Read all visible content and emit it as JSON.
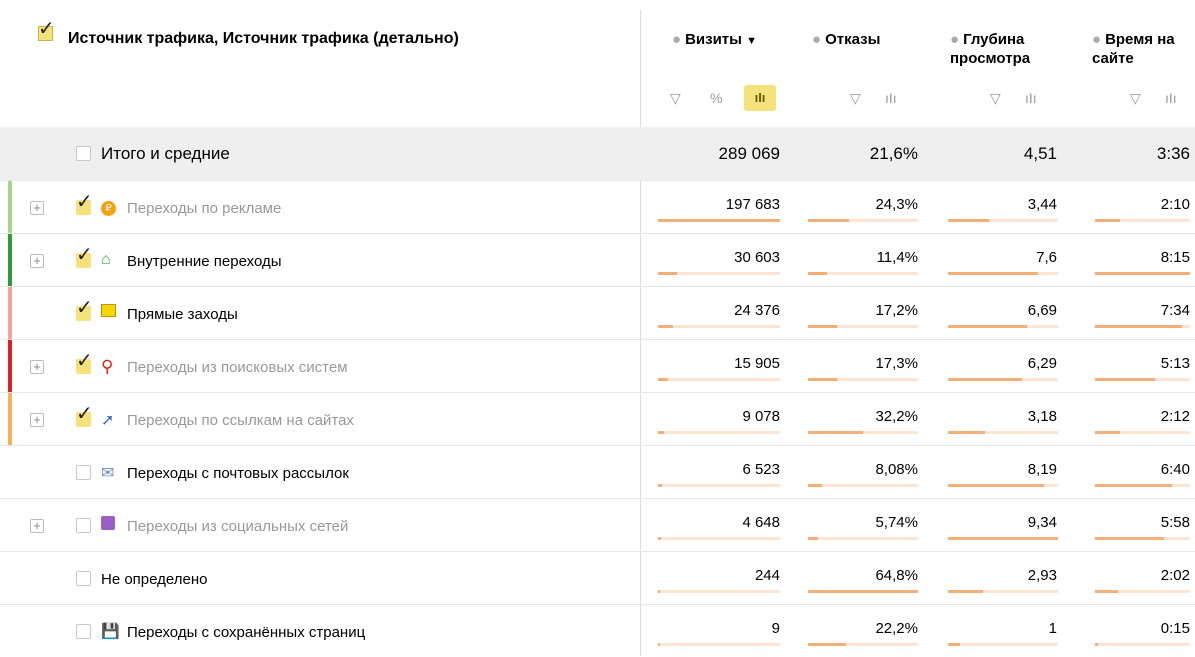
{
  "header": {
    "title": "Источник трафика, Источник трафика (детально)",
    "columns": [
      "Визиты",
      "Отказы",
      "Глубина просмотра",
      "Время на сайте"
    ],
    "sort_indicator": "▼",
    "percent_toggle": "%"
  },
  "total": {
    "label": "Итого и средние",
    "values": [
      "289 069",
      "21,6%",
      "4,51",
      "3:36"
    ]
  },
  "rows": [
    {
      "label": "Переходы по рекламе",
      "values": [
        "197 683",
        "24,3%",
        "3,44",
        "2:10"
      ],
      "expandable": true,
      "checked": true,
      "muted": true,
      "color": "#a8d58a"
    },
    {
      "label": "Внутренние переходы",
      "values": [
        "30 603",
        "11,4%",
        "7,6",
        "8:15"
      ],
      "expandable": true,
      "checked": true,
      "muted": false,
      "color": "#2f9a3c"
    },
    {
      "label": "Прямые заходы",
      "values": [
        "24 376",
        "17,2%",
        "6,69",
        "7:34"
      ],
      "expandable": false,
      "checked": true,
      "muted": false,
      "color": "#f2a3a3"
    },
    {
      "label": "Переходы из поисковых систем",
      "values": [
        "15 905",
        "17,3%",
        "6,29",
        "5:13"
      ],
      "expandable": true,
      "checked": true,
      "muted": true,
      "color": "#de2020"
    },
    {
      "label": "Переходы по ссылкам на сайтах",
      "values": [
        "9 078",
        "32,2%",
        "3,18",
        "2:12"
      ],
      "expandable": true,
      "checked": true,
      "muted": true,
      "color": "#f4b356"
    },
    {
      "label": "Переходы с почтовых рассылок",
      "values": [
        "6 523",
        "8,08%",
        "8,19",
        "6:40"
      ],
      "expandable": false,
      "checked": false,
      "muted": false,
      "color": null
    },
    {
      "label": "Переходы из социальных сетей",
      "values": [
        "4 648",
        "5,74%",
        "9,34",
        "5:58"
      ],
      "expandable": true,
      "checked": false,
      "muted": true,
      "color": null
    },
    {
      "label": "Не определено",
      "values": [
        "244",
        "64,8%",
        "2,93",
        "2:02"
      ],
      "expandable": false,
      "checked": false,
      "muted": false,
      "color": null
    },
    {
      "label": "Переходы с сохранённых страниц",
      "values": [
        "9",
        "22,2%",
        "1",
        "0:15"
      ],
      "expandable": false,
      "checked": false,
      "muted": false,
      "color": null
    }
  ]
}
